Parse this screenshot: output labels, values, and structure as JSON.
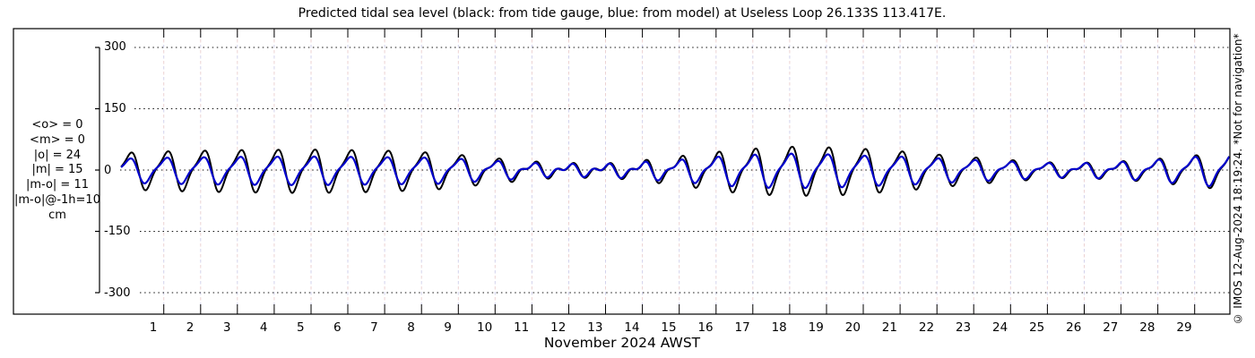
{
  "watermark": "© IMOS 12-Aug-2024 18:19:24. *Not for navigation*",
  "stats_block": {
    "lines": [
      "<o> = 0",
      "<m> = 0",
      "|o| = 24",
      "|m| = 15",
      "|m-o| = 11",
      "|m-o|@-1h=10",
      "cm"
    ]
  },
  "chart_data": {
    "type": "line",
    "title": "Predicted tidal sea level (black: from tide gauge, blue: from model) at Useless Loop 26.133S 113.417E.",
    "xlabel": "November 2024 AWST",
    "ylabel": "",
    "y_unit": "cm",
    "ylim": [
      -300,
      300
    ],
    "yticks": [
      300,
      150,
      0,
      -150,
      -300
    ],
    "x_tick_labels": [
      1,
      2,
      3,
      4,
      5,
      6,
      7,
      8,
      9,
      10,
      11,
      12,
      13,
      14,
      15,
      16,
      17,
      18,
      19,
      20,
      21,
      22,
      23,
      24,
      25,
      26,
      27,
      28,
      29
    ],
    "grid": {
      "vertical": "dashed line each day",
      "horizontal": "black dotted at each y tick"
    },
    "legend": "black: tide gauge, blue: model (stated in title)",
    "stats": {
      "mean_obs_cm": 0,
      "mean_model_cm": 0,
      "mean_abs_obs_cm": 24,
      "mean_abs_model_cm": 15,
      "mean_abs_diff_cm": 11,
      "mean_abs_diff_at_minus_1h_cm": 10
    },
    "series": [
      {
        "name": "tide gauge (observed)",
        "color": "#000000",
        "line_width": 2,
        "t_range_days": [
          -1.16,
          28.955
        ],
        "sample_step_days": 0.02,
        "tidal_period_days": 0.997,
        "peak_phase_day": 0.05,
        "semidiurnal_phase_rad": 1.9,
        "diurnal_amplitude_cm_keypoints": [
          [
            -1.2,
            40
          ],
          [
            0,
            44
          ],
          [
            2,
            47
          ],
          [
            4,
            48
          ],
          [
            6,
            46
          ],
          [
            7.5,
            40
          ],
          [
            9,
            26
          ],
          [
            10.5,
            13
          ],
          [
            12,
            11
          ],
          [
            13,
            19
          ],
          [
            14,
            30
          ],
          [
            15.5,
            46
          ],
          [
            17,
            55
          ],
          [
            18.5,
            53
          ],
          [
            20,
            44
          ],
          [
            21.5,
            32
          ],
          [
            23,
            22
          ],
          [
            24.5,
            14
          ],
          [
            25.5,
            16
          ],
          [
            26.5,
            21
          ],
          [
            27.5,
            29
          ],
          [
            28.5,
            38
          ],
          [
            29.2,
            42
          ]
        ],
        "semidiurnal_amplitude_cm_keypoints": [
          [
            -1.2,
            11
          ],
          [
            4,
            13
          ],
          [
            9,
            10
          ],
          [
            12,
            9
          ],
          [
            16,
            15
          ],
          [
            20,
            12
          ],
          [
            24,
            7
          ],
          [
            27,
            9
          ],
          [
            29.2,
            12
          ]
        ]
      },
      {
        "name": "model",
        "color": "#0000cc",
        "line_width": 2.2,
        "derived_from": "observed curve scaled by ratio envelope",
        "amplitude_ratio_keypoints": [
          [
            -1.2,
            0.66
          ],
          [
            6,
            0.66
          ],
          [
            9,
            0.78
          ],
          [
            12,
            0.92
          ],
          [
            14,
            0.74
          ],
          [
            19,
            0.68
          ],
          [
            22,
            0.8
          ],
          [
            24.5,
            0.95
          ],
          [
            29.2,
            0.88
          ]
        ],
        "phase_lead_days": 0.025
      }
    ]
  }
}
